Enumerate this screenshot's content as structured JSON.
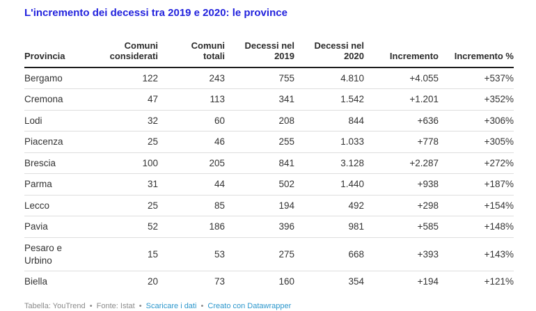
{
  "chart_data": {
    "type": "table",
    "title": "L'incremento dei decessi tra 2019 e 2020: le province",
    "columns": [
      "Provincia",
      "Comuni considerati",
      "Comuni totali",
      "Decessi nel 2019",
      "Decessi nel 2020",
      "Incremento",
      "Incremento %"
    ],
    "rows": [
      [
        "Bergamo",
        "122",
        "243",
        "755",
        "4.810",
        "+4.055",
        "+537%"
      ],
      [
        "Cremona",
        "47",
        "113",
        "341",
        "1.542",
        "+1.201",
        "+352%"
      ],
      [
        "Lodi",
        "32",
        "60",
        "208",
        "844",
        "+636",
        "+306%"
      ],
      [
        "Piacenza",
        "25",
        "46",
        "255",
        "1.033",
        "+778",
        "+305%"
      ],
      [
        "Brescia",
        "100",
        "205",
        "841",
        "3.128",
        "+2.287",
        "+272%"
      ],
      [
        "Parma",
        "31",
        "44",
        "502",
        "1.440",
        "+938",
        "+187%"
      ],
      [
        "Lecco",
        "25",
        "85",
        "194",
        "492",
        "+298",
        "+154%"
      ],
      [
        "Pavia",
        "52",
        "186",
        "396",
        "981",
        "+585",
        "+148%"
      ],
      [
        "Pesaro e Urbino",
        "15",
        "53",
        "275",
        "668",
        "+393",
        "+143%"
      ],
      [
        "Biella",
        "20",
        "73",
        "160",
        "354",
        "+194",
        "+121%"
      ]
    ],
    "layout_hints": {
      "first_column_align": "left",
      "numeric_columns_align": "right",
      "header_rule": "thick",
      "row_rule": "thin-gray"
    }
  },
  "footer": {
    "credit": "Tabella: YouTrend",
    "source": "Fonte: Istat",
    "separator": "•",
    "links": [
      {
        "label": "Scaricare i dati"
      },
      {
        "label": "Creato con Datawrapper"
      }
    ]
  },
  "colors": {
    "title": "#2222dd",
    "header_border": "#1c1c1c",
    "row_border": "#dddddd",
    "body_text": "#333333",
    "footer_text": "#8a8a8a",
    "link": "#2a96cc",
    "background": "#ffffff"
  }
}
